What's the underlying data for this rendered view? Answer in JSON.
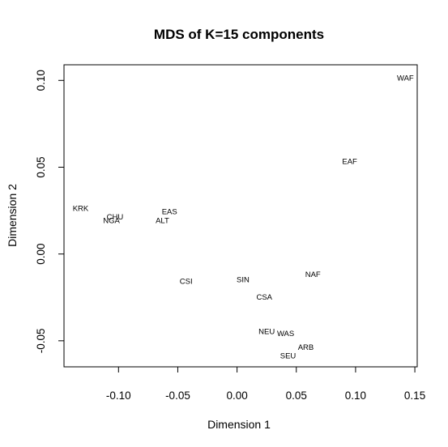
{
  "chart_data": {
    "type": "scatter",
    "title": "MDS of K=15 components",
    "xlabel": "Dimension 1",
    "ylabel": "Dimension 2",
    "xlim": [
      -0.146,
      0.152
    ],
    "ylim": [
      -0.065,
      0.109
    ],
    "xticks": [
      {
        "value": -0.1,
        "label": "-0.10"
      },
      {
        "value": -0.05,
        "label": "-0.05"
      },
      {
        "value": 0.0,
        "label": "0.00"
      },
      {
        "value": 0.05,
        "label": "0.05"
      },
      {
        "value": 0.1,
        "label": "0.10"
      },
      {
        "value": 0.15,
        "label": "0.15"
      }
    ],
    "yticks": [
      {
        "value": -0.05,
        "label": "-0.05"
      },
      {
        "value": 0.0,
        "label": "0.00"
      },
      {
        "value": 0.05,
        "label": "0.05"
      },
      {
        "value": 0.1,
        "label": "0.10"
      }
    ],
    "grid": false,
    "legend": "none",
    "points": [
      {
        "label": "WAF",
        "x": 0.142,
        "y": 0.101
      },
      {
        "label": "EAF",
        "x": 0.095,
        "y": 0.053
      },
      {
        "label": "KRK",
        "x": -0.132,
        "y": 0.026
      },
      {
        "label": "EAS",
        "x": -0.057,
        "y": 0.024
      },
      {
        "label": "CHU",
        "x": -0.103,
        "y": 0.021
      },
      {
        "label": "NGA",
        "x": -0.106,
        "y": 0.019
      },
      {
        "label": "ALT",
        "x": -0.063,
        "y": 0.019
      },
      {
        "label": "NAF",
        "x": 0.064,
        "y": -0.012
      },
      {
        "label": "SIN",
        "x": 0.005,
        "y": -0.015
      },
      {
        "label": "CSI",
        "x": -0.043,
        "y": -0.016
      },
      {
        "label": "CSA",
        "x": 0.023,
        "y": -0.025
      },
      {
        "label": "NEU",
        "x": 0.025,
        "y": -0.045
      },
      {
        "label": "WAS",
        "x": 0.041,
        "y": -0.046
      },
      {
        "label": "ARB",
        "x": 0.058,
        "y": -0.054
      },
      {
        "label": "SEU",
        "x": 0.043,
        "y": -0.059
      }
    ]
  }
}
